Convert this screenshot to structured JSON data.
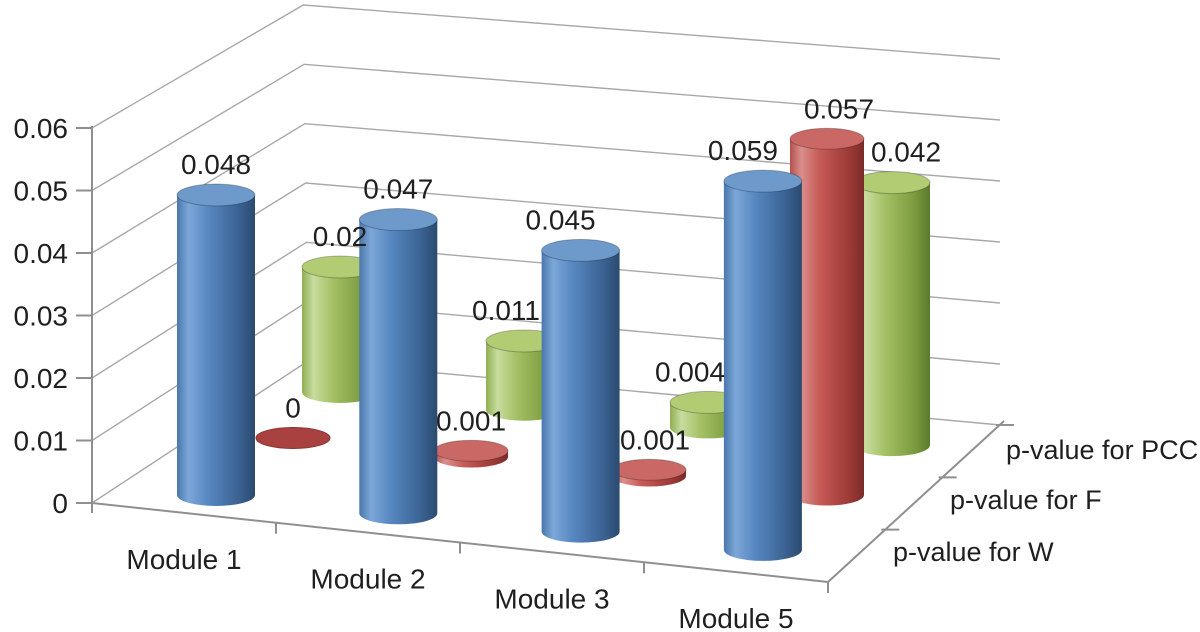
{
  "figure": {
    "background": "#ffffff"
  },
  "chart_data": {
    "type": "bar",
    "style": "3d-cylinder",
    "title": "",
    "categories": [
      "Module 1",
      "Module 2",
      "Module 3",
      "Module 5"
    ],
    "series": [
      {
        "name": "p-value for W",
        "color": "#4f81bd",
        "values": [
          0.048,
          0.047,
          0.045,
          0.059
        ],
        "data_labels": [
          "0.048",
          "0.047",
          "0.045",
          "0.059"
        ]
      },
      {
        "name": "p-value for F",
        "color": "#c0504d",
        "values": [
          0,
          0.001,
          0.001,
          0.057
        ],
        "data_labels": [
          "0",
          "0.001",
          "0.001",
          "0.057"
        ]
      },
      {
        "name": "p-value for PCC",
        "color": "#9bbb59",
        "values": [
          0.02,
          0.011,
          0.004,
          0.042
        ],
        "data_labels": [
          "0.02",
          "0.011",
          "0.004",
          "0.042"
        ]
      }
    ],
    "value_axis": {
      "ticks": [
        "0",
        "0.01",
        "0.02",
        "0.03",
        "0.04",
        "0.05",
        "0.06"
      ],
      "min": 0,
      "max": 0.06
    },
    "category_axis_labels": [
      "Module 1",
      "Module 2",
      "Module 3",
      "Module 5"
    ],
    "series_axis_labels": [
      "p-value for W",
      "p-value for F",
      "p-value for PCC"
    ],
    "grid": true,
    "legend": "none",
    "colors": {
      "gridline": "#a8a8a8",
      "axis": "#8f8f8f",
      "text": "#1f1f1f",
      "blue_top": "#6d99cb",
      "red_top": "#c96865",
      "green_top": "#b2cc74",
      "red_zero_disc": "#a84140"
    }
  }
}
